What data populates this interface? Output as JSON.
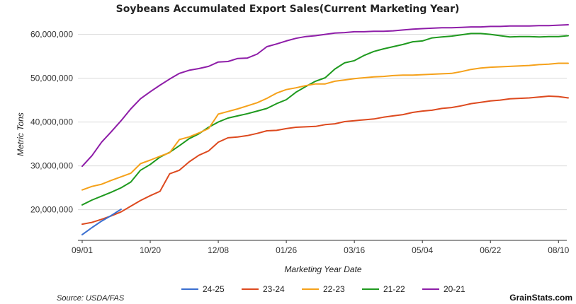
{
  "chart_data": {
    "type": "line",
    "title": "Soybeans Accumulated Export Sales(Current Marketing Year)",
    "xlabel": "Marketing Year Date",
    "ylabel": "Metric Tons",
    "x_ticks": [
      "09/01",
      "10/20",
      "12/08",
      "01/26",
      "03/16",
      "05/04",
      "06/22",
      "08/10"
    ],
    "x_tick_weeks": [
      0,
      7,
      14,
      21,
      28,
      35,
      42,
      49
    ],
    "x_range_weeks": [
      0,
      50
    ],
    "y_ticks": [
      20000000,
      30000000,
      40000000,
      50000000,
      60000000
    ],
    "y_tick_labels": [
      "20,000,000",
      "30,000,000",
      "40,000,000",
      "50,000,000",
      "60,000,000"
    ],
    "ylim": [
      13000000,
      63000000
    ],
    "grid": "horizontal",
    "legend_position": "bottom",
    "x_unit": "week of marketing year (0 = 09/01)",
    "series": [
      {
        "name": "24-25",
        "color": "#3a6fd0",
        "values": [
          14300000,
          15900000,
          17400000,
          18700000,
          20100000
        ]
      },
      {
        "name": "23-24",
        "color": "#dd4a1f",
        "values": [
          16700000,
          17100000,
          17800000,
          18600000,
          19500000,
          20800000,
          22100000,
          23200000,
          24200000,
          28200000,
          29000000,
          30900000,
          32400000,
          33400000,
          35400000,
          36400000,
          36600000,
          36900000,
          37400000,
          38000000,
          38100000,
          38500000,
          38800000,
          38900000,
          39000000,
          39400000,
          39600000,
          40100000,
          40300000,
          40500000,
          40700000,
          41100000,
          41400000,
          41700000,
          42200000,
          42500000,
          42700000,
          43100000,
          43300000,
          43700000,
          44200000,
          44500000,
          44800000,
          45000000,
          45300000,
          45400000,
          45500000,
          45700000,
          45900000,
          45800000,
          45500000
        ]
      },
      {
        "name": "22-23",
        "color": "#f5a11a",
        "values": [
          24500000,
          25300000,
          25800000,
          26700000,
          27500000,
          28300000,
          30500000,
          31300000,
          32200000,
          33000000,
          36000000,
          36600000,
          37500000,
          38500000,
          41800000,
          42400000,
          43000000,
          43700000,
          44400000,
          45400000,
          46600000,
          47400000,
          47800000,
          48300000,
          48700000,
          48700000,
          49300000,
          49600000,
          49900000,
          50100000,
          50300000,
          50400000,
          50600000,
          50700000,
          50700000,
          50800000,
          50900000,
          51000000,
          51100000,
          51500000,
          52000000,
          52300000,
          52500000,
          52600000,
          52700000,
          52800000,
          52900000,
          53100000,
          53200000,
          53400000,
          53400000
        ]
      },
      {
        "name": "21-22",
        "color": "#1f9a1f",
        "values": [
          21100000,
          22200000,
          23100000,
          24000000,
          25000000,
          26300000,
          29000000,
          30300000,
          32000000,
          33100000,
          34600000,
          36200000,
          37300000,
          38800000,
          40000000,
          40900000,
          41400000,
          41900000,
          42500000,
          43100000,
          44200000,
          45100000,
          46800000,
          48100000,
          49300000,
          50100000,
          52100000,
          53500000,
          54000000,
          55200000,
          56100000,
          56700000,
          57200000,
          57700000,
          58300000,
          58500000,
          59200000,
          59400000,
          59600000,
          59900000,
          60200000,
          60200000,
          60000000,
          59700000,
          59400000,
          59500000,
          59500000,
          59400000,
          59500000,
          59500000,
          59700000
        ]
      },
      {
        "name": "20-21",
        "color": "#8e1da8",
        "values": [
          29900000,
          32300000,
          35400000,
          37800000,
          40300000,
          43000000,
          45300000,
          46900000,
          48400000,
          49800000,
          51100000,
          51800000,
          52200000,
          52700000,
          53700000,
          53800000,
          54500000,
          54600000,
          55500000,
          57200000,
          57800000,
          58500000,
          59100000,
          59500000,
          59700000,
          60000000,
          60300000,
          60400000,
          60600000,
          60600000,
          60700000,
          60700000,
          60800000,
          61000000,
          61200000,
          61300000,
          61400000,
          61500000,
          61500000,
          61600000,
          61700000,
          61700000,
          61800000,
          61800000,
          61900000,
          61900000,
          61900000,
          62000000,
          62000000,
          62100000,
          62200000
        ]
      }
    ]
  },
  "footer": {
    "source": "Source: USDA/FAS",
    "brand": "GrainStats.com"
  }
}
